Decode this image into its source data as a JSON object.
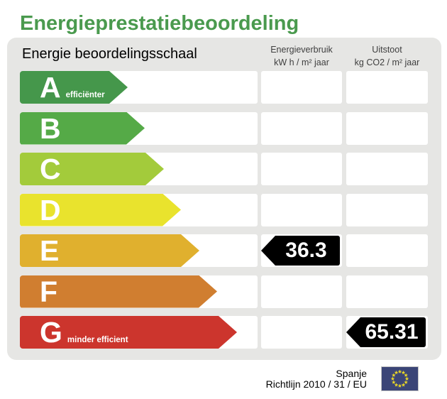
{
  "title": "Energieprestatiebeoordeling",
  "panel": {
    "scale_header": "Energie beoordelingsschaal",
    "columns": [
      {
        "name": "Energieverbruik",
        "unit": "kW h / m² jaar"
      },
      {
        "name": "Uitstoot",
        "unit": "kg CO2 / m² jaar"
      }
    ]
  },
  "bands": [
    {
      "letter": "A",
      "note": "efficiënter",
      "color": "#45974b",
      "arrow_width": 152
    },
    {
      "letter": "B",
      "note": "",
      "color": "#55aa47",
      "arrow_width": 176
    },
    {
      "letter": "C",
      "note": "",
      "color": "#a3cb3b",
      "arrow_width": 203
    },
    {
      "letter": "D",
      "note": "",
      "color": "#e9e32d",
      "arrow_width": 227
    },
    {
      "letter": "E",
      "note": "",
      "color": "#e0b02e",
      "arrow_width": 253
    },
    {
      "letter": "F",
      "note": "",
      "color": "#d07e30",
      "arrow_width": 278
    },
    {
      "letter": "G",
      "note": "minder efficient",
      "color": "#cc352d",
      "arrow_width": 306
    }
  ],
  "values": [
    {
      "band_index": 4,
      "band": "E",
      "column_index": 0,
      "column": "Energieverbruik",
      "value": "36.3"
    },
    {
      "band_index": 6,
      "band": "G",
      "column_index": 1,
      "column": "Uitstoot",
      "value": "65.31"
    }
  ],
  "footer": {
    "country": "Spanje",
    "directive": "Richtlijn 2010 / 31 / EU",
    "flag_colors": {
      "field": "#3b4577",
      "stars": "#ecd925"
    }
  },
  "chart_data": {
    "type": "bar",
    "title": "Energieprestatiebeoordeling",
    "categories": [
      "A",
      "B",
      "C",
      "D",
      "E",
      "F",
      "G"
    ],
    "series": [
      {
        "name": "Energieverbruik kW h / m² jaar",
        "values": [
          null,
          null,
          null,
          null,
          36.3,
          null,
          null
        ]
      },
      {
        "name": "Uitstoot kg CO2 / m² jaar",
        "values": [
          null,
          null,
          null,
          null,
          null,
          null,
          65.31
        ]
      }
    ],
    "annotations": [
      "A = efficiënter",
      "G = minder efficient"
    ],
    "legend_position": "top",
    "grid": false
  }
}
